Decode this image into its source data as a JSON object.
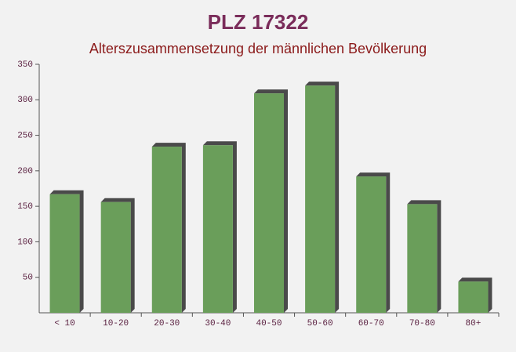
{
  "chart_data": {
    "type": "bar",
    "title": "PLZ 17322",
    "subtitle": "Alterszusammensetzung der männlichen Bevölkerung",
    "categories": [
      "< 10",
      "10-20",
      "20-30",
      "30-40",
      "40-50",
      "50-60",
      "60-70",
      "70-80",
      "80+"
    ],
    "values": [
      167,
      156,
      234,
      236,
      309,
      320,
      192,
      153,
      44
    ],
    "color": "#6a9e5a",
    "ylim": [
      0,
      350
    ],
    "yticks": [
      50,
      100,
      150,
      200,
      250,
      300,
      350
    ]
  }
}
